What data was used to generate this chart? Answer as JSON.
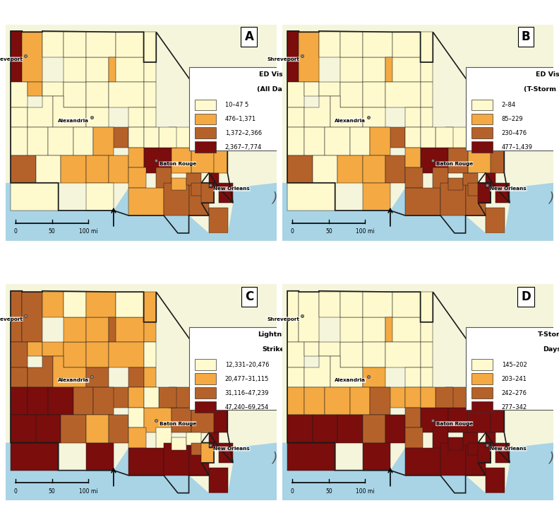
{
  "panels": [
    {
      "label": "A",
      "title_line1": "ED Visits",
      "title_line2": "(All Days)",
      "legend_entries": [
        "10–47 5",
        "476–1,371",
        "1,372–2,366",
        "2,367–7,774"
      ]
    },
    {
      "label": "B",
      "title_line1": "ED Visits",
      "title_line2": "(T-Storm Days)",
      "legend_entries": [
        "2–84",
        "85–229",
        "230–476",
        "477–1,439"
      ]
    },
    {
      "label": "C",
      "title_line1": "Lightning",
      "title_line2": "Strikes",
      "legend_entries": [
        "12,331–20,476",
        "20,477–31,115",
        "31,116–47,239",
        "47,240–69,254"
      ]
    },
    {
      "label": "D",
      "title_line1": "T-Storm",
      "title_line2": "Days",
      "legend_entries": [
        "145–202",
        "203–241",
        "242–276",
        "277–342"
      ]
    }
  ],
  "colors": [
    "#FFFACD",
    "#F4A942",
    "#B5622A",
    "#7B0D0D"
  ],
  "city_color": "#808080",
  "background_color": "#F5F5DC",
  "water_color": "#A8D4E6",
  "border_color": "#1A1A1A",
  "outer_background": "#FFFFFF"
}
